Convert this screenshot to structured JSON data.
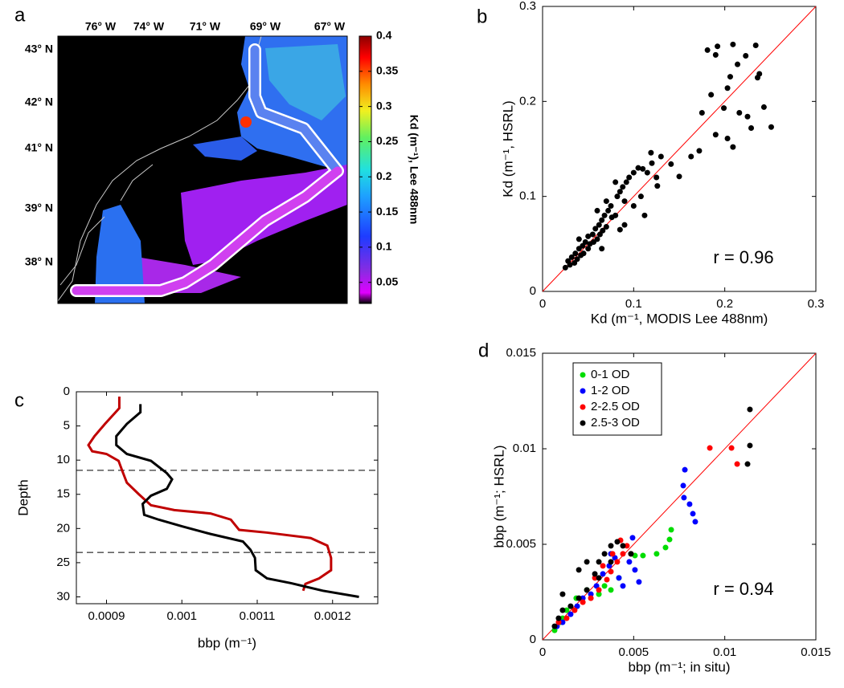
{
  "chart_data": [
    {
      "type": "map",
      "label": "a",
      "lon_labels": [
        "76° W",
        "74° W",
        "71° W",
        "69° W",
        "67° W"
      ],
      "lat_labels": [
        "43° N",
        "42° N",
        "41° N",
        "39° N",
        "38° N"
      ],
      "colorbar": {
        "label": "Kd (m⁻¹), Lee 488nm",
        "ylim": [
          0.02,
          0.4
        ],
        "yticks": [
          0.05,
          0.1,
          0.15,
          0.2,
          0.25,
          0.3,
          0.35,
          0.4
        ]
      }
    },
    {
      "type": "scatter",
      "label": "b",
      "color": "#000000",
      "identity_line": true,
      "identity_color": "#ff0000",
      "xlabel": "Kd (m⁻¹, MODIS Lee 488nm)",
      "ylabel": "Kd (m⁻¹, HSRL)",
      "annotation": "r = 0.96",
      "xlim": [
        0,
        0.3
      ],
      "ylim": [
        0,
        0.3
      ],
      "xticks": [
        0,
        0.1,
        0.2,
        0.3
      ],
      "yticks": [
        0,
        0.1,
        0.2,
        0.3
      ],
      "x": [
        0.181,
        0.192,
        0.209,
        0.223,
        0.234,
        0.236,
        0.238,
        0.214,
        0.19,
        0.206,
        0.185,
        0.203,
        0.199,
        0.175,
        0.172,
        0.19,
        0.203,
        0.209,
        0.216,
        0.225,
        0.229,
        0.243,
        0.251,
        0.163,
        0.15,
        0.141,
        0.126,
        0.13,
        0.11,
        0.119,
        0.025,
        0.028,
        0.03,
        0.032,
        0.035,
        0.036,
        0.038,
        0.04,
        0.042,
        0.044,
        0.045,
        0.047,
        0.05,
        0.05,
        0.052,
        0.055,
        0.056,
        0.058,
        0.06,
        0.062,
        0.063,
        0.065,
        0.066,
        0.068,
        0.07,
        0.072,
        0.075,
        0.076,
        0.08,
        0.082,
        0.085,
        0.088,
        0.09,
        0.092,
        0.095,
        0.1,
        0.1,
        0.105,
        0.108,
        0.112,
        0.115,
        0.12,
        0.09,
        0.08,
        0.07,
        0.06,
        0.085,
        0.065,
        0.04,
        0.125
      ],
      "values": [
        0.254,
        0.258,
        0.26,
        0.248,
        0.259,
        0.225,
        0.229,
        0.239,
        0.249,
        0.226,
        0.207,
        0.214,
        0.193,
        0.188,
        0.148,
        0.165,
        0.161,
        0.152,
        0.188,
        0.184,
        0.172,
        0.194,
        0.173,
        0.142,
        0.121,
        0.134,
        0.111,
        0.142,
        0.129,
        0.146,
        0.025,
        0.032,
        0.028,
        0.036,
        0.03,
        0.04,
        0.034,
        0.045,
        0.038,
        0.048,
        0.04,
        0.052,
        0.045,
        0.058,
        0.05,
        0.06,
        0.052,
        0.066,
        0.055,
        0.07,
        0.06,
        0.075,
        0.064,
        0.08,
        0.068,
        0.085,
        0.09,
        0.078,
        0.08,
        0.1,
        0.105,
        0.11,
        0.095,
        0.115,
        0.12,
        0.125,
        0.09,
        0.13,
        0.1,
        0.08,
        0.125,
        0.135,
        0.07,
        0.115,
        0.095,
        0.085,
        0.065,
        0.045,
        0.055,
        0.12
      ]
    },
    {
      "type": "line",
      "label": "c",
      "xlabel": "bbp (m⁻¹)",
      "ylabel": "Depth",
      "xlim": [
        0.00086,
        0.00126
      ],
      "ylim": [
        0,
        31
      ],
      "y_inverted": true,
      "xticks": [
        0.0009,
        0.001,
        0.0011,
        0.0012
      ],
      "yticks": [
        0,
        5,
        10,
        15,
        20,
        25,
        30
      ],
      "hlines": [
        11.5,
        23.5
      ],
      "series": [
        {
          "color": "#c00000",
          "x": [
            0.000917,
            0.000917,
            0.000898,
            0.000884,
            0.000876,
            0.000881,
            0.0009,
            0.000916,
            0.000921,
            0.000927,
            0.000943,
            0.000959,
            0.00099,
            0.001038,
            0.001065,
            0.001076,
            0.001113,
            0.001171,
            0.001193,
            0.001198,
            0.001198,
            0.001182,
            0.001164,
            0.001161
          ],
          "values": [
            0.7,
            2.4,
            4.7,
            6.5,
            7.8,
            8.7,
            9.1,
            10.1,
            11.6,
            13.3,
            15,
            16.6,
            17.3,
            17.8,
            18.7,
            20.2,
            20.6,
            21.4,
            22.5,
            24.3,
            26.1,
            27.3,
            28.1,
            29.1
          ]
        },
        {
          "color": "#000000",
          "x": [
            0.000945,
            0.000945,
            0.000927,
            0.000913,
            0.000913,
            0.000927,
            0.000959,
            0.00098,
            0.000987,
            0.00098,
            0.000959,
            0.000948,
            0.00095,
            0.000969,
            0.001001,
            0.001038,
            0.001081,
            0.001091,
            0.001097,
            0.001098,
            0.001113,
            0.001145,
            0.001187,
            0.001235
          ],
          "values": [
            1.8,
            3,
            4.7,
            6.5,
            7.8,
            9.1,
            10.1,
            11.9,
            12.8,
            14.2,
            15.2,
            16.4,
            18,
            18.7,
            19.7,
            20.8,
            21.9,
            23.1,
            24.3,
            26.1,
            27.3,
            28,
            29.1,
            30
          ]
        }
      ]
    },
    {
      "type": "scatter",
      "label": "d",
      "identity_line": true,
      "identity_color": "#ff0000",
      "legend": "top-left",
      "xlabel": "bbp (m⁻¹; in situ)",
      "ylabel": "bbp (m⁻¹; HSRL)",
      "annotation": "r = 0.94",
      "xlim": [
        0,
        0.015
      ],
      "ylim": [
        0,
        0.015
      ],
      "xticks": [
        0,
        0.005,
        0.01,
        0.015
      ],
      "yticks": [
        0,
        0.005,
        0.01,
        0.015
      ],
      "series": [
        {
          "name": "0-1 OD",
          "color": "#00dd00",
          "x": [
            0.00066,
            0.00097,
            0.0011,
            0.00132,
            0.00185,
            0.00243,
            0.00309,
            0.0034,
            0.00375,
            0.00419,
            0.00507,
            0.00551,
            0.00626,
            0.00675,
            0.00697,
            0.00706
          ],
          "values": [
            0.0005,
            0.00092,
            0.00113,
            0.00155,
            0.00218,
            0.00261,
            0.00239,
            0.00282,
            0.00261,
            0.00324,
            0.00441,
            0.00441,
            0.0045,
            0.00483,
            0.00525,
            0.00576
          ]
        },
        {
          "name": "1-2 OD",
          "color": "#0000ff",
          "x": [
            0.00079,
            0.0011,
            0.00154,
            0.0019,
            0.00221,
            0.00265,
            0.00296,
            0.00331,
            0.00366,
            0.00397,
            0.00419,
            0.00441,
            0.00476,
            0.00507,
            0.00529,
            0.00494,
            0.00375,
            0.00781,
            0.00772,
            0.00776,
            0.00807,
            0.00825,
            0.00838
          ],
          "values": [
            0.00071,
            0.00092,
            0.00134,
            0.00176,
            0.00218,
            0.00239,
            0.00282,
            0.00345,
            0.00387,
            0.00429,
            0.00324,
            0.00282,
            0.00408,
            0.00366,
            0.00303,
            0.00534,
            0.0045,
            0.0089,
            0.00807,
            0.00744,
            0.0071,
            0.0066,
            0.00618
          ]
        },
        {
          "name": "2-2.5 OD",
          "color": "#ff0000",
          "x": [
            0.00088,
            0.00132,
            0.00176,
            0.00221,
            0.00265,
            0.00309,
            0.00353,
            0.00375,
            0.0041,
            0.00441,
            0.00463,
            0.00428,
            0.00384,
            0.00331,
            0.00287,
            0.00918,
            0.01037,
            0.01068,
            0.00485
          ],
          "values": [
            0.00092,
            0.00113,
            0.00155,
            0.00197,
            0.00218,
            0.00261,
            0.00315,
            0.00357,
            0.00408,
            0.0045,
            0.00492,
            0.00521,
            0.0045,
            0.00387,
            0.00324,
            0.01004,
            0.01004,
            0.0092,
            0.0045
          ]
        },
        {
          "name": "2.5-3 OD",
          "color": "#000000",
          "x": [
            0.00066,
            0.00088,
            0.0011,
            0.00154,
            0.00199,
            0.00243,
            0.00287,
            0.00309,
            0.0034,
            0.00375,
            0.0041,
            0.00441,
            0.00485,
            0.00375,
            0.00309,
            0.00243,
            0.00199,
            0.0011,
            0.01138,
            0.01138,
            0.01125
          ],
          "values": [
            0.00071,
            0.00113,
            0.00155,
            0.00176,
            0.00218,
            0.00261,
            0.00345,
            0.00408,
            0.0045,
            0.00492,
            0.00513,
            0.00492,
            0.0045,
            0.00408,
            0.00324,
            0.00408,
            0.00366,
            0.00239,
            0.01206,
            0.01017,
            0.0092
          ]
        }
      ]
    }
  ]
}
